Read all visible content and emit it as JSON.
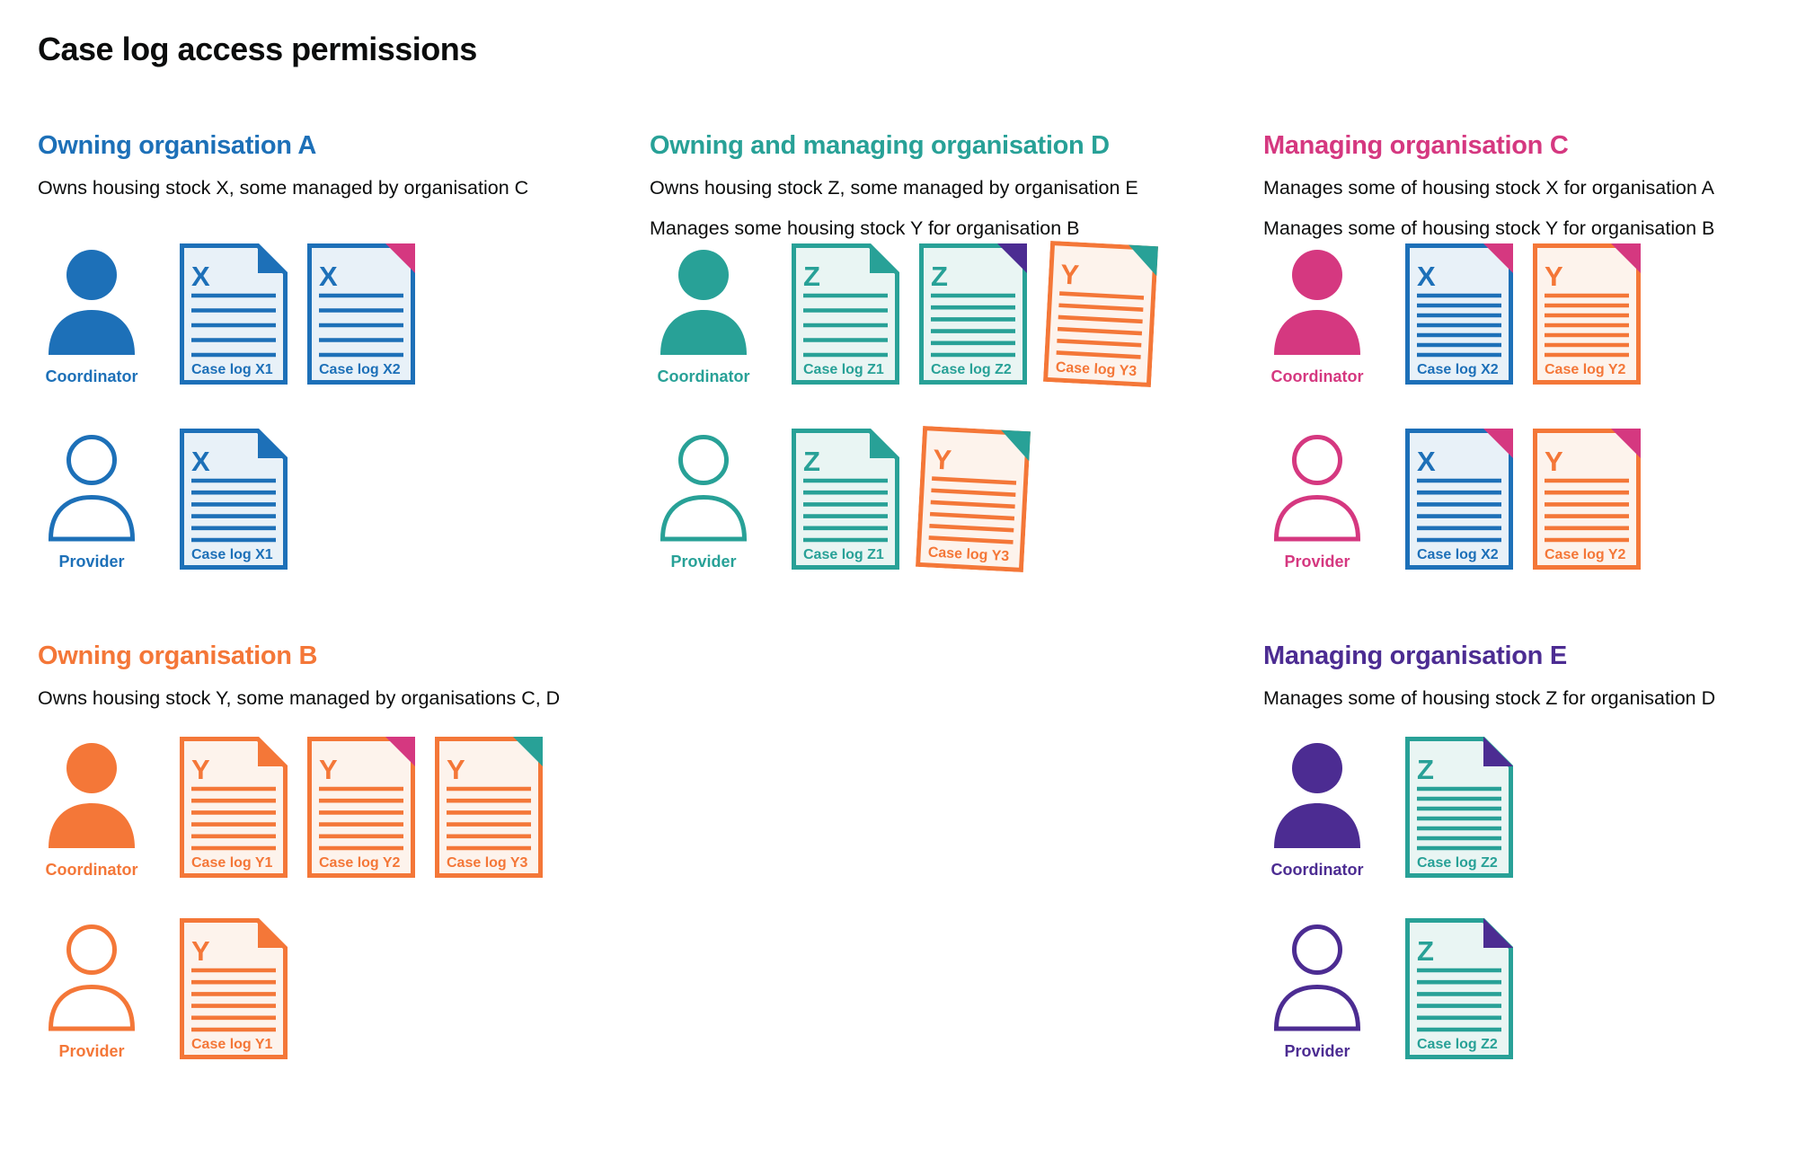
{
  "title": "Case log access permissions",
  "palette": {
    "blue": "#1d70b8",
    "teal": "#28a197",
    "pink": "#d53880",
    "orange": "#f47738",
    "purple": "#4c2c92",
    "ink": "#0b0c0c",
    "doc_bg": {
      "blue": "#e8f1f8",
      "teal": "#e9f5f3",
      "orange": "#fdf3ec"
    }
  },
  "roles": {
    "coordinator": "Coordinator",
    "provider": "Provider"
  },
  "sections": [
    {
      "id": "org-a",
      "title": "Owning organisation A",
      "color": "blue",
      "position": "top-left",
      "description": [
        "Owns housing stock X, some managed by organisation C"
      ],
      "rows": [
        {
          "role": "Coordinator",
          "person": "filled",
          "docs": [
            {
              "letter": "X",
              "label": "Case log X1",
              "doc_color": "blue",
              "fold_color": "blue",
              "fold_style": "dogear",
              "lines": 5
            },
            {
              "letter": "X",
              "label": "Case log X2",
              "doc_color": "blue",
              "fold_color": "pink",
              "fold_style": "corner",
              "lines": 5
            }
          ]
        },
        {
          "role": "Provider",
          "person": "outline",
          "docs": [
            {
              "letter": "X",
              "label": "Case log X1",
              "doc_color": "blue",
              "fold_color": "blue",
              "fold_style": "dogear",
              "lines": 6
            }
          ]
        }
      ]
    },
    {
      "id": "org-d",
      "title": "Owning and managing organisation D",
      "color": "teal",
      "position": "top-middle",
      "description": [
        "Owns housing stock Z, some managed by organisation E",
        "Manages some housing stock Y for organisation B"
      ],
      "rows": [
        {
          "role": "Coordinator",
          "person": "filled",
          "docs": [
            {
              "letter": "Z",
              "label": "Case log Z1",
              "doc_color": "teal",
              "fold_color": "teal",
              "fold_style": "dogear",
              "lines": 5
            },
            {
              "letter": "Z",
              "label": "Case log Z2",
              "doc_color": "teal",
              "fold_color": "purple",
              "fold_style": "corner",
              "lines": 6
            },
            {
              "letter": "Y",
              "label": "Case log Y3",
              "doc_color": "orange",
              "fold_color": "teal",
              "fold_style": "corner",
              "lines": 6,
              "tilt": true
            }
          ]
        },
        {
          "role": "Provider",
          "person": "outline",
          "docs": [
            {
              "letter": "Z",
              "label": "Case log Z1",
              "doc_color": "teal",
              "fold_color": "teal",
              "fold_style": "dogear",
              "lines": 6
            },
            {
              "letter": "Y",
              "label": "Case log Y3",
              "doc_color": "orange",
              "fold_color": "teal",
              "fold_style": "corner",
              "lines": 6,
              "tilt": true
            }
          ]
        }
      ]
    },
    {
      "id": "org-c",
      "title": "Managing organisation C",
      "color": "pink",
      "position": "top-right",
      "description": [
        "Manages some of housing stock X for organisation A",
        "Manages some of housing stock Y for organisation B"
      ],
      "rows": [
        {
          "role": "Coordinator",
          "person": "filled",
          "docs": [
            {
              "letter": "X",
              "label": "Case log X2",
              "doc_color": "blue",
              "fold_color": "pink",
              "fold_style": "corner",
              "lines": 7
            },
            {
              "letter": "Y",
              "label": "Case log Y2",
              "doc_color": "orange",
              "fold_color": "pink",
              "fold_style": "corner",
              "lines": 7
            }
          ]
        },
        {
          "role": "Provider",
          "person": "outline",
          "docs": [
            {
              "letter": "X",
              "label": "Case log X2",
              "doc_color": "blue",
              "fold_color": "pink",
              "fold_style": "corner",
              "lines": 6
            },
            {
              "letter": "Y",
              "label": "Case log Y2",
              "doc_color": "orange",
              "fold_color": "pink",
              "fold_style": "corner",
              "lines": 6
            }
          ]
        }
      ]
    },
    {
      "id": "org-b",
      "title": "Owning organisation B",
      "color": "orange",
      "position": "bottom-left",
      "description": [
        "Owns housing stock Y, some managed by organisations C, D"
      ],
      "rows": [
        {
          "role": "Coordinator",
          "person": "filled",
          "docs": [
            {
              "letter": "Y",
              "label": "Case log Y1",
              "doc_color": "orange",
              "fold_color": "orange",
              "fold_style": "dogear",
              "lines": 6
            },
            {
              "letter": "Y",
              "label": "Case log Y2",
              "doc_color": "orange",
              "fold_color": "pink",
              "fold_style": "corner",
              "lines": 6
            },
            {
              "letter": "Y",
              "label": "Case log Y3",
              "doc_color": "orange",
              "fold_color": "teal",
              "fold_style": "corner",
              "lines": 6
            }
          ]
        },
        {
          "role": "Provider",
          "person": "outline",
          "docs": [
            {
              "letter": "Y",
              "label": "Case log Y1",
              "doc_color": "orange",
              "fold_color": "orange",
              "fold_style": "dogear",
              "lines": 6
            }
          ]
        }
      ]
    },
    {
      "id": "org-e",
      "title": "Managing organisation E",
      "color": "purple",
      "position": "bottom-right",
      "description": [
        "Manages some of housing stock Z for organisation D"
      ],
      "rows": [
        {
          "role": "Coordinator",
          "person": "filled",
          "docs": [
            {
              "letter": "Z",
              "label": "Case log Z2",
              "doc_color": "teal",
              "fold_color": "purple",
              "fold_style": "dogear",
              "lines": 7
            }
          ]
        },
        {
          "role": "Provider",
          "person": "outline",
          "docs": [
            {
              "letter": "Z",
              "label": "Case log Z2",
              "doc_color": "teal",
              "fold_color": "purple",
              "fold_style": "dogear",
              "lines": 6
            }
          ]
        }
      ]
    }
  ]
}
